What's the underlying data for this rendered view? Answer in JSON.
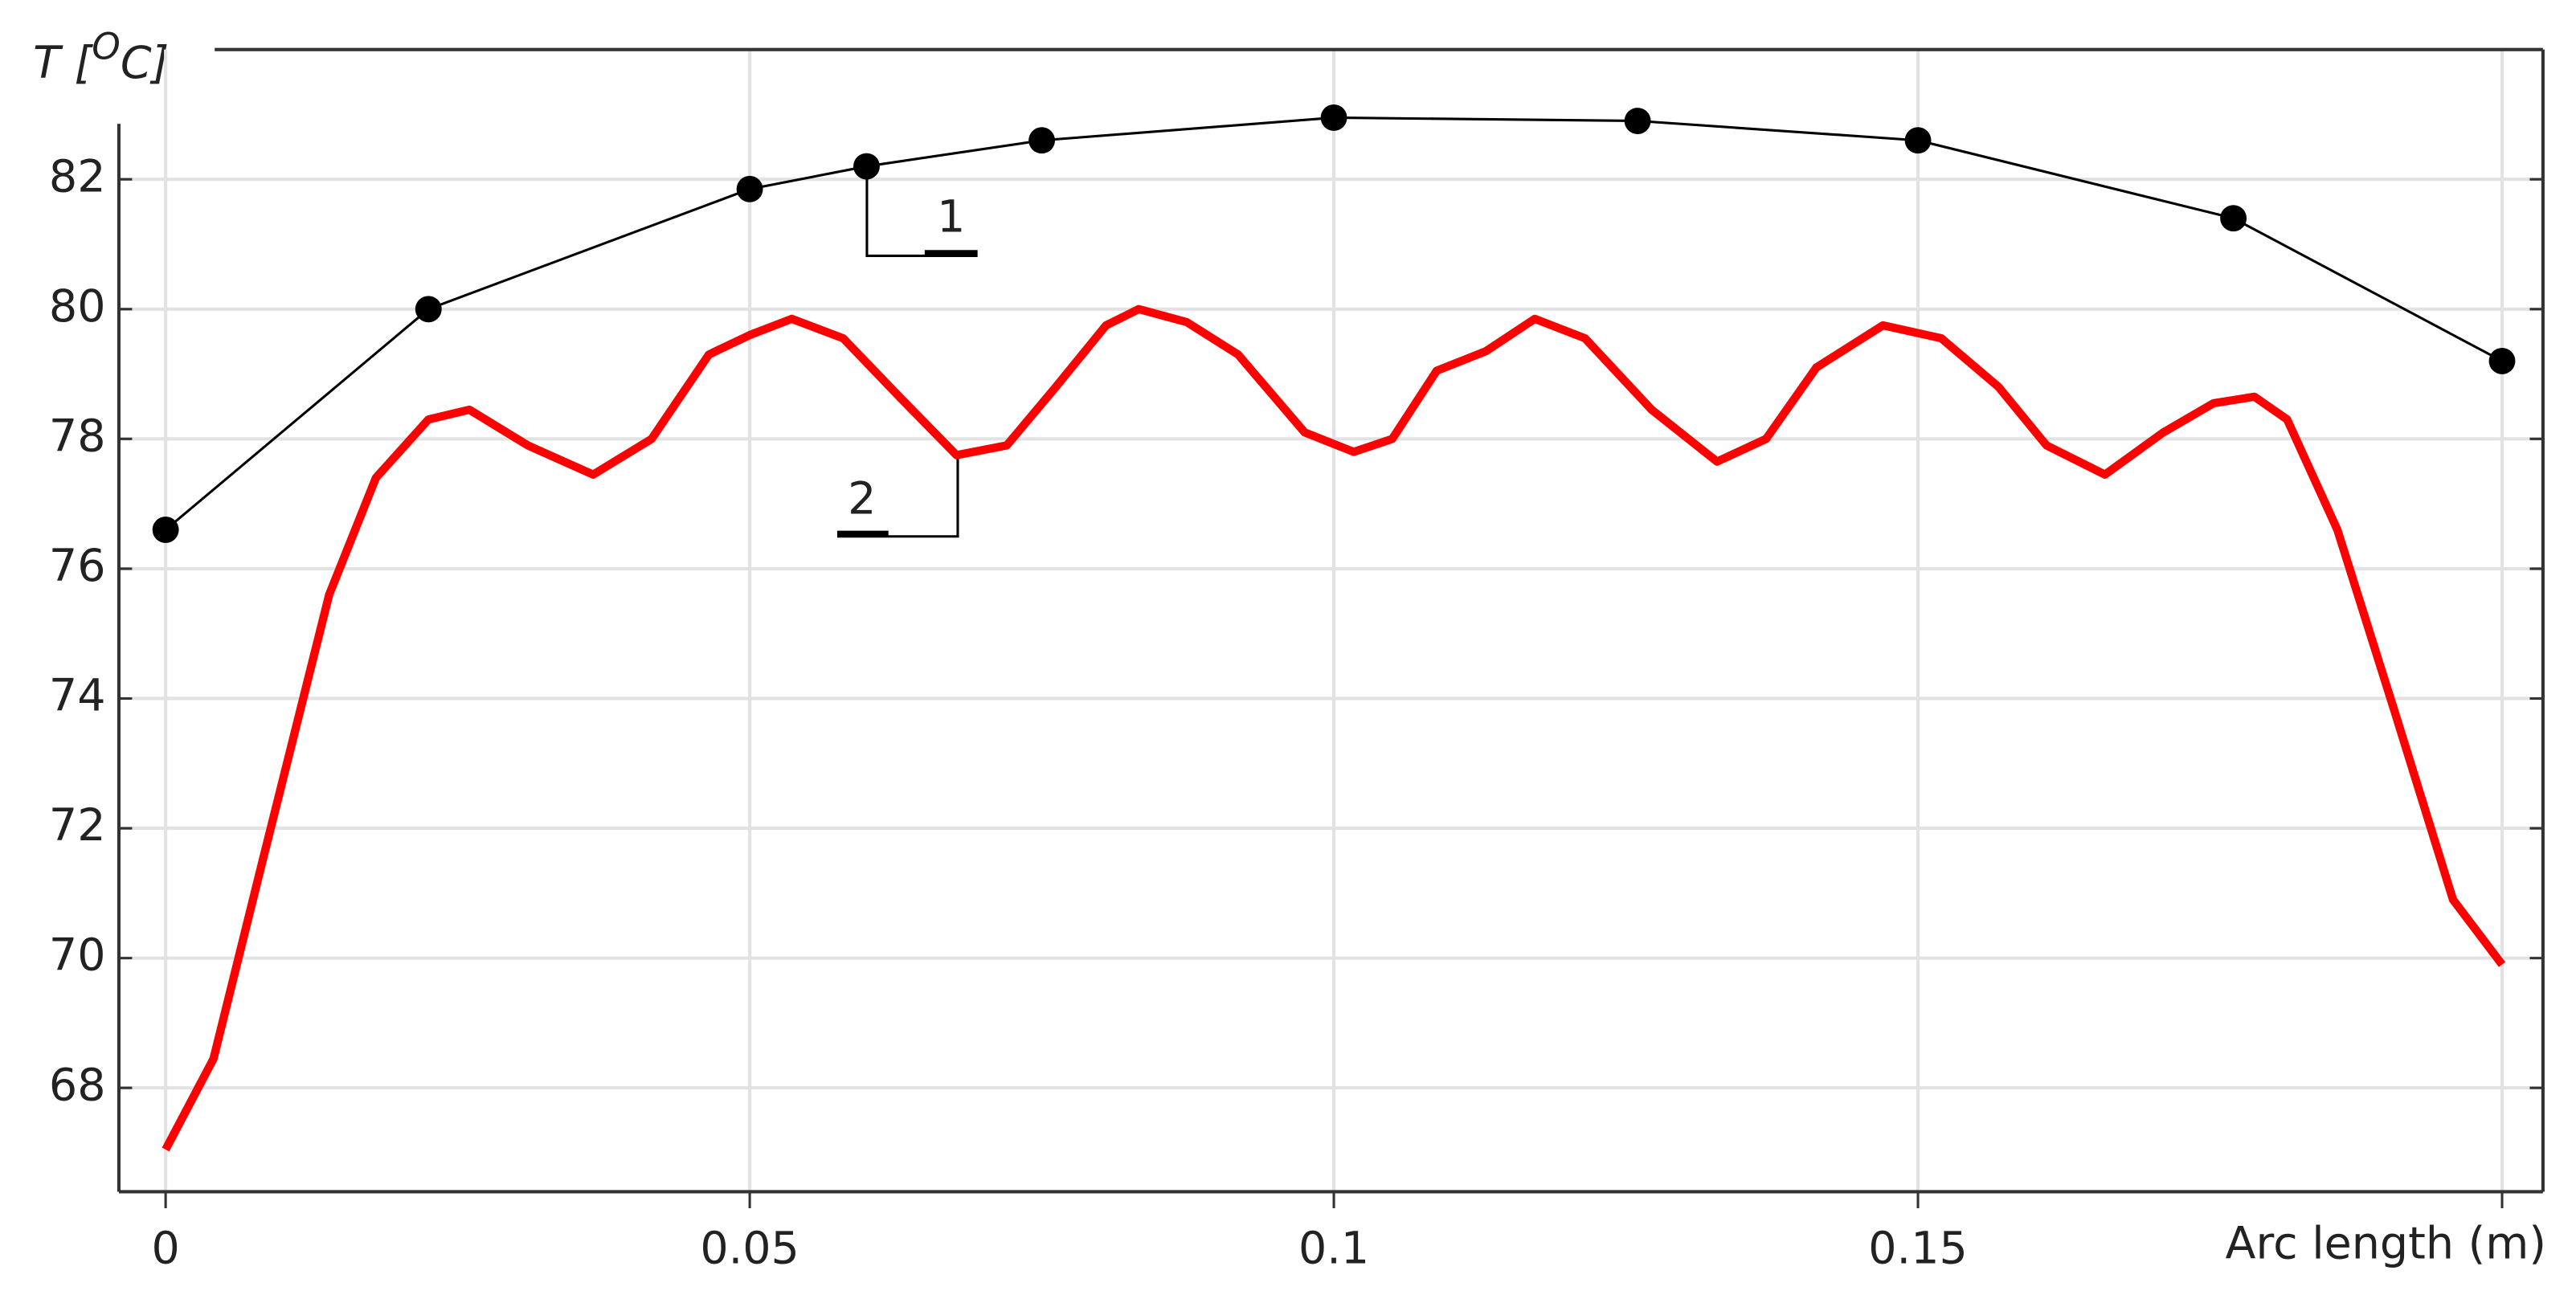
{
  "chart_data": {
    "type": "line",
    "ylabel": "T [",
    "ylabel_sup": "O",
    "ylabel_end": "C]",
    "xlabel": "Arc length (m)",
    "xlim": [
      -0.004,
      0.2035
    ],
    "ylim": [
      66.4,
      84
    ],
    "xticks": [
      0,
      0.05,
      0.1,
      0.15,
      {
        "value": 0.2,
        "label": null
      }
    ],
    "yticks": [
      68,
      70,
      72,
      74,
      76,
      78,
      80,
      82
    ],
    "grid": true,
    "series": [
      {
        "color": "#000000",
        "markers": true,
        "x": [
          0,
          0.0225,
          0.05,
          0.06,
          0.075,
          0.1,
          0.126,
          0.15,
          0.177,
          0.2
        ],
        "values": [
          76.6,
          80.0,
          81.85,
          82.2,
          82.6,
          82.95,
          82.9,
          82.6,
          81.4,
          79.2
        ]
      },
      {
        "color": "#ff0000",
        "markers": false,
        "x": [
          0,
          0.0041,
          0.0083,
          0.014,
          0.018,
          0.0225,
          0.026,
          0.031,
          0.0366,
          0.0416,
          0.0465,
          0.05,
          0.0536,
          0.058,
          0.0628,
          0.0677,
          0.072,
          0.0762,
          0.0805,
          0.0833,
          0.0874,
          0.0918,
          0.0975,
          0.1017,
          0.105,
          0.1088,
          0.113,
          0.1172,
          0.1215,
          0.1272,
          0.1328,
          0.137,
          0.1413,
          0.147,
          0.152,
          0.1569,
          0.161,
          0.166,
          0.171,
          0.1753,
          0.1788,
          0.1816,
          0.1859,
          0.1908,
          0.1958,
          0.2
        ],
        "values": [
          67.05,
          68.45,
          71.5,
          75.6,
          77.4,
          78.3,
          78.45,
          77.9,
          77.45,
          78.0,
          79.3,
          79.6,
          79.85,
          79.55,
          78.65,
          77.75,
          77.9,
          78.8,
          79.75,
          80.0,
          79.8,
          79.3,
          78.1,
          77.8,
          78.0,
          79.05,
          79.35,
          79.85,
          79.55,
          78.45,
          77.65,
          78.0,
          79.1,
          79.75,
          79.55,
          78.8,
          77.9,
          77.45,
          78.1,
          78.55,
          78.65,
          78.3,
          76.6,
          73.8,
          70.9,
          69.9
        ]
      }
    ],
    "annotations": [
      {
        "text": "1"
      },
      {
        "text": "2"
      }
    ]
  }
}
